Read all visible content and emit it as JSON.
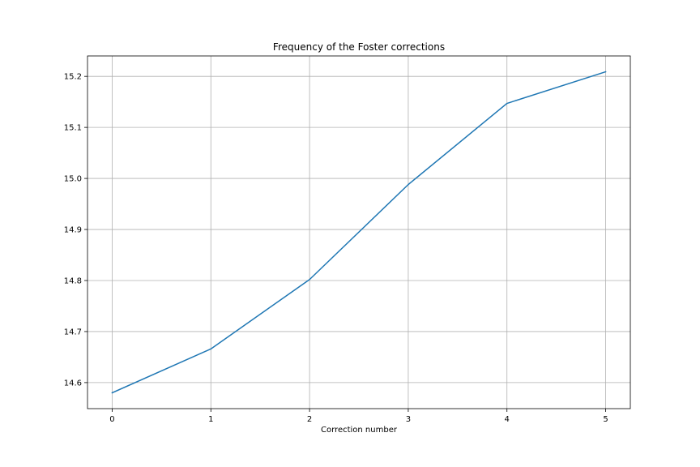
{
  "chart_data": {
    "type": "line",
    "title": "Frequency of the Foster corrections",
    "xlabel": "Correction number",
    "ylabel": "",
    "x": [
      0,
      1,
      2,
      3,
      4,
      5
    ],
    "series": [
      {
        "values": [
          14.58,
          14.666,
          14.802,
          14.988,
          15.147,
          15.209
        ],
        "color": "#1f77b4"
      }
    ],
    "xlim": [
      -0.25,
      5.25
    ],
    "ylim": [
      14.549,
      15.24
    ],
    "xticks": [
      0,
      1,
      2,
      3,
      4,
      5
    ],
    "xtick_labels": [
      "0",
      "1",
      "2",
      "3",
      "4",
      "5"
    ],
    "yticks": [
      14.6,
      14.7,
      14.8,
      14.9,
      15.0,
      15.1,
      15.2
    ],
    "ytick_labels": [
      "14.6",
      "14.7",
      "14.8",
      "14.9",
      "15.0",
      "15.1",
      "15.2"
    ],
    "grid": true,
    "legend": "none"
  }
}
